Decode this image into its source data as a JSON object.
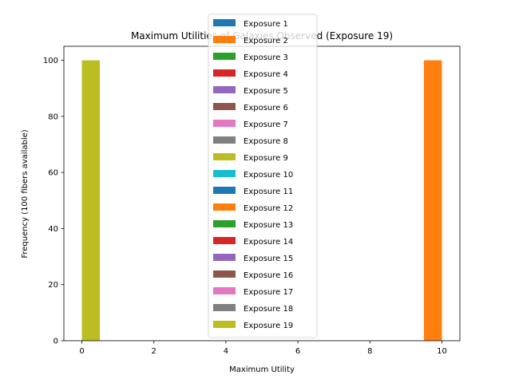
{
  "chart_data": {
    "type": "bar",
    "title": "Maximum Utilities of Galaxies Observed (Exposure 19)",
    "xlabel": "Maximum Utility",
    "ylabel": "Frequency (100 fibers available)",
    "xlim": [
      -0.5,
      10.5
    ],
    "ylim": [
      0,
      105
    ],
    "xticks": [
      0,
      2,
      4,
      6,
      8,
      10
    ],
    "yticks": [
      0,
      20,
      40,
      60,
      80,
      100
    ],
    "grid": false,
    "legend_position": "top-center",
    "bar_width": 0.5,
    "series": [
      {
        "name": "Exposure 1",
        "color": "#1f77b4",
        "bars": []
      },
      {
        "name": "Exposure 2",
        "color": "#ff7f0e",
        "bars": [
          {
            "x_start": 9.5,
            "x_end": 10.0,
            "value": 100
          }
        ]
      },
      {
        "name": "Exposure 3",
        "color": "#2ca02c",
        "bars": []
      },
      {
        "name": "Exposure 4",
        "color": "#d62728",
        "bars": []
      },
      {
        "name": "Exposure 5",
        "color": "#9467bd",
        "bars": []
      },
      {
        "name": "Exposure 6",
        "color": "#8c564b",
        "bars": []
      },
      {
        "name": "Exposure 7",
        "color": "#e377c2",
        "bars": []
      },
      {
        "name": "Exposure 8",
        "color": "#7f7f7f",
        "bars": []
      },
      {
        "name": "Exposure 9",
        "color": "#bcbd22",
        "bars": []
      },
      {
        "name": "Exposure 10",
        "color": "#17becf",
        "bars": []
      },
      {
        "name": "Exposure 11",
        "color": "#1f77b4",
        "bars": []
      },
      {
        "name": "Exposure 12",
        "color": "#ff7f0e",
        "bars": []
      },
      {
        "name": "Exposure 13",
        "color": "#2ca02c",
        "bars": []
      },
      {
        "name": "Exposure 14",
        "color": "#d62728",
        "bars": []
      },
      {
        "name": "Exposure 15",
        "color": "#9467bd",
        "bars": []
      },
      {
        "name": "Exposure 16",
        "color": "#8c564b",
        "bars": []
      },
      {
        "name": "Exposure 17",
        "color": "#e377c2",
        "bars": []
      },
      {
        "name": "Exposure 18",
        "color": "#7f7f7f",
        "bars": []
      },
      {
        "name": "Exposure 19",
        "color": "#bcbd22",
        "bars": [
          {
            "x_start": 0.0,
            "x_end": 0.5,
            "value": 100
          }
        ]
      }
    ]
  }
}
